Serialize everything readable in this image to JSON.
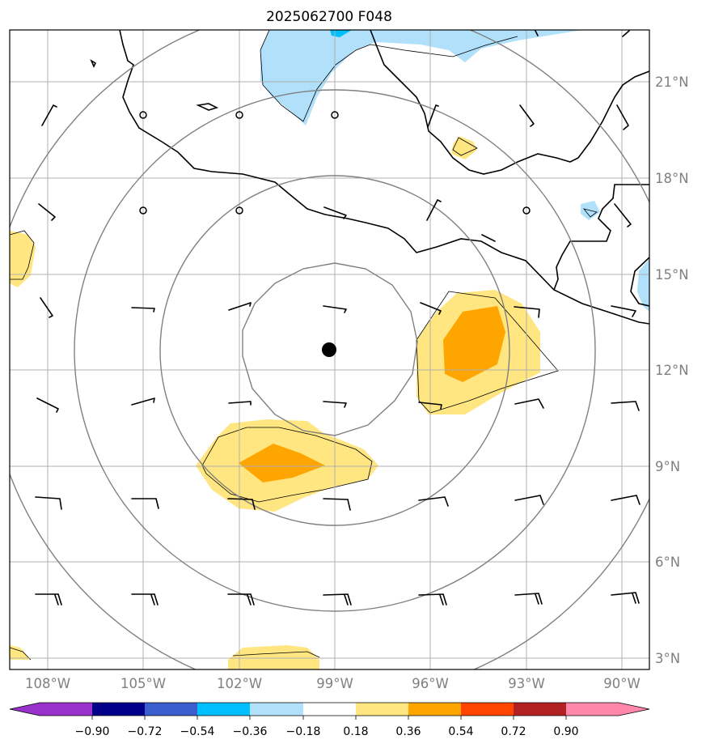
{
  "title": "2025062700 F048",
  "center_marker": {
    "lat": 12.6,
    "lon": -99.2
  },
  "range_rings_count": 4,
  "axes": {
    "lat_labels": [
      "3°N",
      "6°N",
      "9°N",
      "12°N",
      "15°N",
      "18°N",
      "21°N"
    ],
    "lon_labels": [
      "108°W",
      "105°W",
      "102°W",
      "99°W",
      "96°W",
      "93°W",
      "90°W"
    ],
    "lat_values": [
      3,
      6,
      9,
      12,
      15,
      18,
      21
    ],
    "lon_values": [
      -108,
      -105,
      -102,
      -99,
      -96,
      -93,
      -90
    ],
    "lat_range": [
      2.7,
      22.4
    ],
    "lon_range": [
      -109.2,
      -89.2
    ]
  },
  "colorbar": {
    "levels": [
      "−0.90",
      "−0.72",
      "−0.54",
      "−0.36",
      "−0.18",
      "0.18",
      "0.36",
      "0.54",
      "0.72",
      "0.90"
    ],
    "colors": [
      "#9932cc",
      "#00008b",
      "#3a5fcd",
      "#00bfff",
      "#b0e0fa",
      "#ffffff",
      "#ffe680",
      "#ffa500",
      "#ff4500",
      "#b22222",
      "#ff88aa"
    ]
  },
  "colors": {
    "coast": "#000000",
    "grid": "#b0b0b0",
    "ring": "#808080",
    "light_blue": "#b0e0fa",
    "mid_blue": "#00bfff",
    "light_yellow": "#ffe680",
    "orange": "#ffa500"
  }
}
